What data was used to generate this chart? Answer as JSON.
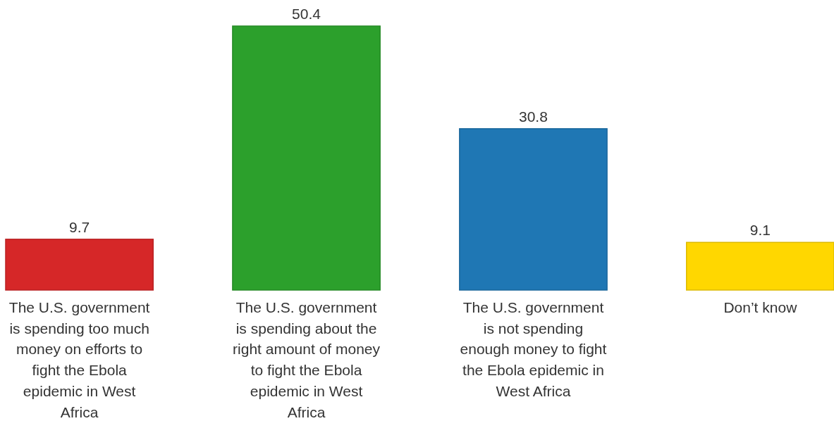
{
  "chart_data": {
    "type": "bar",
    "categories": [
      "The U.S. government is spending too much money on efforts to fight the Ebola epidemic in West Africa",
      "The U.S. government is spending about the right amount of money to fight the Ebola epidemic in West Africa",
      "The U.S. government is not spending enough money to fight the Ebola epidemic in West Africa",
      "Don’t know"
    ],
    "values": [
      9.7,
      50.4,
      30.8,
      9.1
    ],
    "colors": [
      "#d62728",
      "#2ca02c",
      "#1f77b4",
      "#ffd700"
    ],
    "data_labels": true
  }
}
